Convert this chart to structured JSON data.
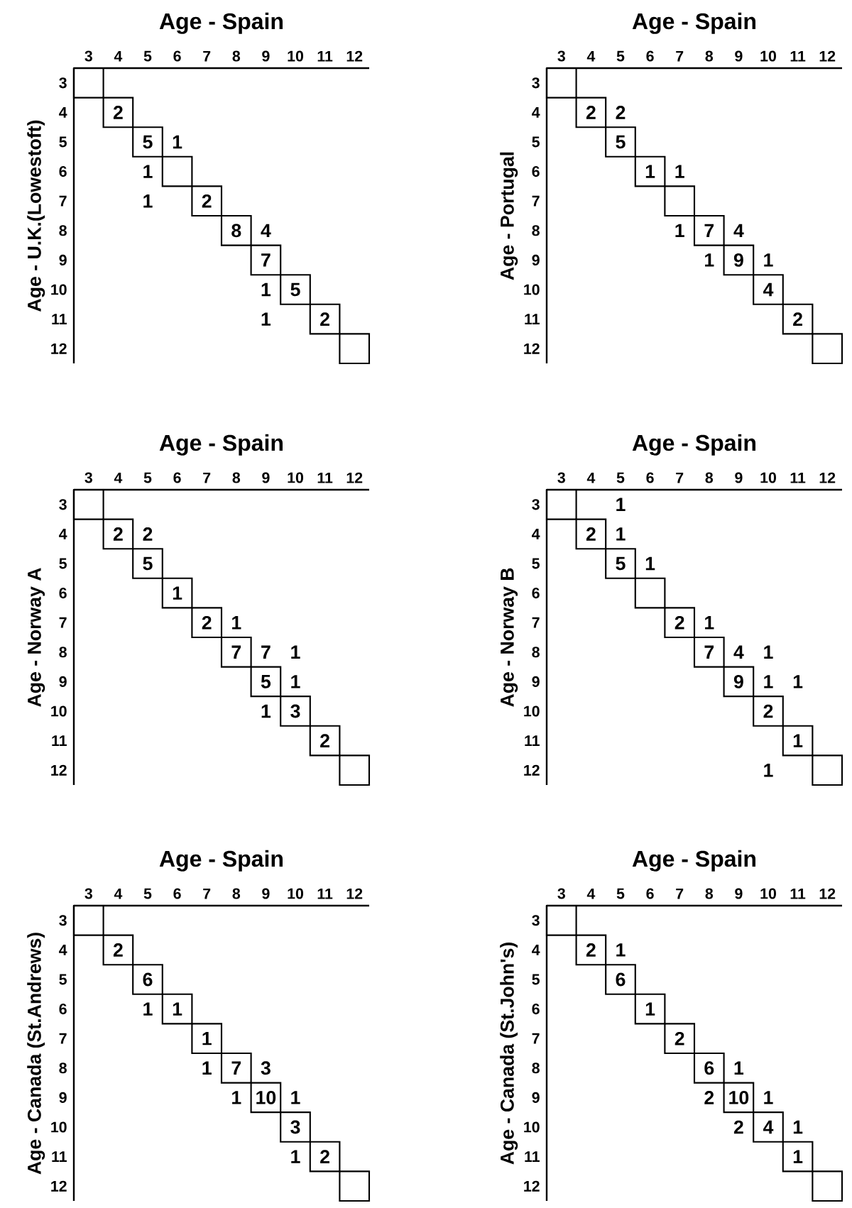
{
  "chart_data": [
    {
      "type": "heatmap",
      "data_labels": true,
      "xlabel": "Age - Spain",
      "ylabel": "Age - U.K.(Lowestoft)",
      "categories": [
        "3",
        "4",
        "5",
        "6",
        "7",
        "8",
        "9",
        "10",
        "11",
        "12"
      ],
      "y_categories": [
        "3",
        "4",
        "5",
        "6",
        "7",
        "8",
        "9",
        "10",
        "11",
        "12"
      ],
      "cells": [
        [
          null,
          null,
          null,
          null,
          null,
          null,
          null,
          null,
          null,
          null
        ],
        [
          null,
          2,
          null,
          null,
          null,
          null,
          null,
          null,
          null,
          null
        ],
        [
          null,
          null,
          5,
          1,
          null,
          null,
          null,
          null,
          null,
          null
        ],
        [
          null,
          null,
          1,
          null,
          null,
          null,
          null,
          null,
          null,
          null
        ],
        [
          null,
          null,
          1,
          null,
          2,
          null,
          null,
          null,
          null,
          null
        ],
        [
          null,
          null,
          null,
          null,
          null,
          8,
          4,
          null,
          null,
          null
        ],
        [
          null,
          null,
          null,
          null,
          null,
          null,
          7,
          null,
          null,
          null
        ],
        [
          null,
          null,
          null,
          null,
          null,
          null,
          1,
          5,
          null,
          null
        ],
        [
          null,
          null,
          null,
          null,
          null,
          null,
          1,
          null,
          2,
          null
        ],
        [
          null,
          null,
          null,
          null,
          null,
          null,
          null,
          null,
          null,
          null
        ]
      ]
    },
    {
      "type": "heatmap",
      "data_labels": true,
      "xlabel": "Age - Spain",
      "ylabel": "Age - Portugal",
      "categories": [
        "3",
        "4",
        "5",
        "6",
        "7",
        "8",
        "9",
        "10",
        "11",
        "12"
      ],
      "y_categories": [
        "3",
        "4",
        "5",
        "6",
        "7",
        "8",
        "9",
        "10",
        "11",
        "12"
      ],
      "cells": [
        [
          null,
          null,
          null,
          null,
          null,
          null,
          null,
          null,
          null,
          null
        ],
        [
          null,
          2,
          2,
          null,
          null,
          null,
          null,
          null,
          null,
          null
        ],
        [
          null,
          null,
          5,
          null,
          null,
          null,
          null,
          null,
          null,
          null
        ],
        [
          null,
          null,
          null,
          1,
          1,
          null,
          null,
          null,
          null,
          null
        ],
        [
          null,
          null,
          null,
          null,
          null,
          null,
          null,
          null,
          null,
          null
        ],
        [
          null,
          null,
          null,
          null,
          1,
          7,
          4,
          null,
          null,
          null
        ],
        [
          null,
          null,
          null,
          null,
          null,
          1,
          9,
          1,
          null,
          null
        ],
        [
          null,
          null,
          null,
          null,
          null,
          null,
          null,
          4,
          null,
          null
        ],
        [
          null,
          null,
          null,
          null,
          null,
          null,
          null,
          null,
          2,
          null
        ],
        [
          null,
          null,
          null,
          null,
          null,
          null,
          null,
          null,
          null,
          null
        ]
      ]
    },
    {
      "type": "heatmap",
      "data_labels": true,
      "xlabel": "Age - Spain",
      "ylabel": "Age - Norway A",
      "categories": [
        "3",
        "4",
        "5",
        "6",
        "7",
        "8",
        "9",
        "10",
        "11",
        "12"
      ],
      "y_categories": [
        "3",
        "4",
        "5",
        "6",
        "7",
        "8",
        "9",
        "10",
        "11",
        "12"
      ],
      "cells": [
        [
          null,
          null,
          null,
          null,
          null,
          null,
          null,
          null,
          null,
          null
        ],
        [
          null,
          2,
          2,
          null,
          null,
          null,
          null,
          null,
          null,
          null
        ],
        [
          null,
          null,
          5,
          null,
          null,
          null,
          null,
          null,
          null,
          null
        ],
        [
          null,
          null,
          null,
          1,
          null,
          null,
          null,
          null,
          null,
          null
        ],
        [
          null,
          null,
          null,
          null,
          2,
          1,
          null,
          null,
          null,
          null
        ],
        [
          null,
          null,
          null,
          null,
          null,
          7,
          7,
          1,
          null,
          null
        ],
        [
          null,
          null,
          null,
          null,
          null,
          null,
          5,
          1,
          null,
          null
        ],
        [
          null,
          null,
          null,
          null,
          null,
          null,
          1,
          3,
          null,
          null
        ],
        [
          null,
          null,
          null,
          null,
          null,
          null,
          null,
          null,
          2,
          null
        ],
        [
          null,
          null,
          null,
          null,
          null,
          null,
          null,
          null,
          null,
          null
        ]
      ]
    },
    {
      "type": "heatmap",
      "data_labels": true,
      "xlabel": "Age - Spain",
      "ylabel": "Age - Norway B",
      "categories": [
        "3",
        "4",
        "5",
        "6",
        "7",
        "8",
        "9",
        "10",
        "11",
        "12"
      ],
      "y_categories": [
        "3",
        "4",
        "5",
        "6",
        "7",
        "8",
        "9",
        "10",
        "11",
        "12"
      ],
      "cells": [
        [
          null,
          null,
          1,
          null,
          null,
          null,
          null,
          null,
          null,
          null
        ],
        [
          null,
          2,
          1,
          null,
          null,
          null,
          null,
          null,
          null,
          null
        ],
        [
          null,
          null,
          5,
          1,
          null,
          null,
          null,
          null,
          null,
          null
        ],
        [
          null,
          null,
          null,
          null,
          null,
          null,
          null,
          null,
          null,
          null
        ],
        [
          null,
          null,
          null,
          null,
          2,
          1,
          null,
          null,
          null,
          null
        ],
        [
          null,
          null,
          null,
          null,
          null,
          7,
          4,
          1,
          null,
          null
        ],
        [
          null,
          null,
          null,
          null,
          null,
          null,
          9,
          1,
          1,
          null
        ],
        [
          null,
          null,
          null,
          null,
          null,
          null,
          null,
          2,
          null,
          null
        ],
        [
          null,
          null,
          null,
          null,
          null,
          null,
          null,
          null,
          1,
          null
        ],
        [
          null,
          null,
          null,
          null,
          null,
          null,
          null,
          1,
          null,
          null
        ]
      ]
    },
    {
      "type": "heatmap",
      "data_labels": true,
      "xlabel": "Age - Spain",
      "ylabel": "Age - Canada (St.Andrews)",
      "categories": [
        "3",
        "4",
        "5",
        "6",
        "7",
        "8",
        "9",
        "10",
        "11",
        "12"
      ],
      "y_categories": [
        "3",
        "4",
        "5",
        "6",
        "7",
        "8",
        "9",
        "10",
        "11",
        "12"
      ],
      "cells": [
        [
          null,
          null,
          null,
          null,
          null,
          null,
          null,
          null,
          null,
          null
        ],
        [
          null,
          2,
          null,
          null,
          null,
          null,
          null,
          null,
          null,
          null
        ],
        [
          null,
          null,
          6,
          null,
          null,
          null,
          null,
          null,
          null,
          null
        ],
        [
          null,
          null,
          1,
          1,
          null,
          null,
          null,
          null,
          null,
          null
        ],
        [
          null,
          null,
          null,
          null,
          1,
          null,
          null,
          null,
          null,
          null
        ],
        [
          null,
          null,
          null,
          null,
          1,
          7,
          3,
          null,
          null,
          null
        ],
        [
          null,
          null,
          null,
          null,
          null,
          1,
          10,
          1,
          null,
          null
        ],
        [
          null,
          null,
          null,
          null,
          null,
          null,
          null,
          3,
          null,
          null
        ],
        [
          null,
          null,
          null,
          null,
          null,
          null,
          null,
          1,
          2,
          null
        ],
        [
          null,
          null,
          null,
          null,
          null,
          null,
          null,
          null,
          null,
          null
        ]
      ]
    },
    {
      "type": "heatmap",
      "data_labels": true,
      "xlabel": "Age - Spain",
      "ylabel": "Age - Canada (St.John's)",
      "categories": [
        "3",
        "4",
        "5",
        "6",
        "7",
        "8",
        "9",
        "10",
        "11",
        "12"
      ],
      "y_categories": [
        "3",
        "4",
        "5",
        "6",
        "7",
        "8",
        "9",
        "10",
        "11",
        "12"
      ],
      "cells": [
        [
          null,
          null,
          null,
          null,
          null,
          null,
          null,
          null,
          null,
          null
        ],
        [
          null,
          2,
          1,
          null,
          null,
          null,
          null,
          null,
          null,
          null
        ],
        [
          null,
          null,
          6,
          null,
          null,
          null,
          null,
          null,
          null,
          null
        ],
        [
          null,
          null,
          null,
          1,
          null,
          null,
          null,
          null,
          null,
          null
        ],
        [
          null,
          null,
          null,
          null,
          2,
          null,
          null,
          null,
          null,
          null
        ],
        [
          null,
          null,
          null,
          null,
          null,
          6,
          1,
          null,
          null,
          null
        ],
        [
          null,
          null,
          null,
          null,
          null,
          2,
          10,
          1,
          null,
          null
        ],
        [
          null,
          null,
          null,
          null,
          null,
          null,
          2,
          4,
          1,
          null
        ],
        [
          null,
          null,
          null,
          null,
          null,
          null,
          null,
          null,
          1,
          null
        ],
        [
          null,
          null,
          null,
          null,
          null,
          null,
          null,
          null,
          null,
          null
        ]
      ]
    }
  ]
}
